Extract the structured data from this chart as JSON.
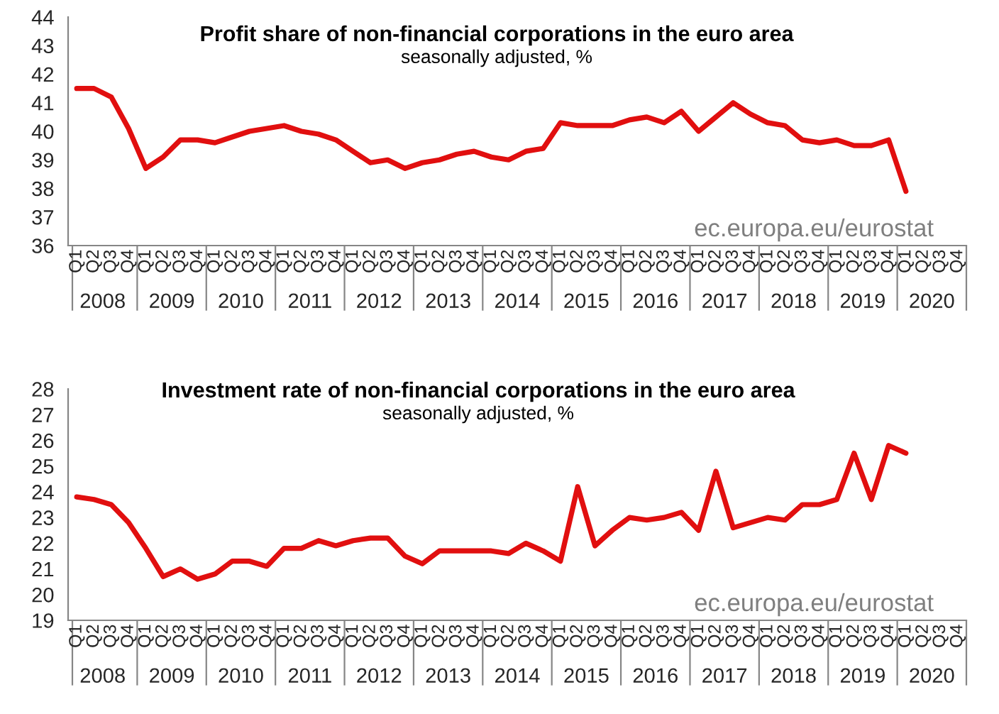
{
  "chart_data": [
    {
      "type": "line",
      "title": "Profit share of non-financial corporations in the euro area",
      "subtitle": "seasonally adjusted, %",
      "categories": [
        "Q1",
        "Q2",
        "Q3",
        "Q4",
        "Q1",
        "Q2",
        "Q3",
        "Q4",
        "Q1",
        "Q2",
        "Q3",
        "Q4",
        "Q1",
        "Q2",
        "Q3",
        "Q4",
        "Q1",
        "Q2",
        "Q3",
        "Q4",
        "Q1",
        "Q2",
        "Q3",
        "Q4",
        "Q1",
        "Q2",
        "Q3",
        "Q4",
        "Q1",
        "Q2",
        "Q3",
        "Q4",
        "Q1",
        "Q2",
        "Q3",
        "Q4",
        "Q1",
        "Q2",
        "Q3",
        "Q4",
        "Q1",
        "Q2",
        "Q3",
        "Q4",
        "Q1",
        "Q2",
        "Q3",
        "Q4",
        "Q1",
        "Q2",
        "Q3",
        "Q4"
      ],
      "series": [
        {
          "color": "#e10f0f",
          "values": [
            41.5,
            41.5,
            41.2,
            40.1,
            38.7,
            39.1,
            39.7,
            39.7,
            39.6,
            39.8,
            40.0,
            40.1,
            40.2,
            40.0,
            39.9,
            39.7,
            39.3,
            38.9,
            39.0,
            38.7,
            38.9,
            39.0,
            39.2,
            39.3,
            39.1,
            39.0,
            39.3,
            39.4,
            40.3,
            40.2,
            40.2,
            40.2,
            40.4,
            40.5,
            40.3,
            40.7,
            40.0,
            40.5,
            41.0,
            40.6,
            40.3,
            40.2,
            39.7,
            39.6,
            39.7,
            39.5,
            39.5,
            39.7,
            37.9,
            null,
            null,
            null
          ]
        }
      ],
      "ylim": [
        36,
        44
      ],
      "yticks": [
        36,
        37,
        38,
        39,
        40,
        41,
        42,
        43,
        44
      ],
      "grid": false,
      "marker": "none",
      "line_style": "solid",
      "annotations": [
        "2008",
        "2009",
        "2010",
        "2011",
        "2012",
        "2013",
        "2014",
        "2015",
        "2016",
        "2017",
        "2018",
        "2019",
        "2020",
        "ec.europa.eu/eurostat"
      ]
    },
    {
      "type": "line",
      "title": "Investment rate of non-financial corporations in the euro area",
      "subtitle": "seasonally adjusted, %",
      "categories": [
        "Q1",
        "Q2",
        "Q3",
        "Q4",
        "Q1",
        "Q2",
        "Q3",
        "Q4",
        "Q1",
        "Q2",
        "Q3",
        "Q4",
        "Q1",
        "Q2",
        "Q3",
        "Q4",
        "Q1",
        "Q2",
        "Q3",
        "Q4",
        "Q1",
        "Q2",
        "Q3",
        "Q4",
        "Q1",
        "Q2",
        "Q3",
        "Q4",
        "Q1",
        "Q2",
        "Q3",
        "Q4",
        "Q1",
        "Q2",
        "Q3",
        "Q4",
        "Q1",
        "Q2",
        "Q3",
        "Q4",
        "Q1",
        "Q2",
        "Q3",
        "Q4",
        "Q1",
        "Q2",
        "Q3",
        "Q4",
        "Q1",
        "Q2",
        "Q3",
        "Q4"
      ],
      "series": [
        {
          "color": "#e10f0f",
          "values": [
            23.8,
            23.7,
            23.5,
            22.8,
            21.8,
            20.7,
            21.0,
            20.6,
            20.8,
            21.3,
            21.3,
            21.1,
            21.8,
            21.8,
            22.1,
            21.9,
            22.1,
            22.2,
            22.2,
            21.5,
            21.2,
            21.7,
            21.7,
            21.7,
            21.7,
            21.6,
            22.0,
            21.7,
            21.3,
            24.2,
            21.9,
            22.5,
            23.0,
            22.9,
            23.0,
            23.2,
            22.5,
            24.8,
            22.6,
            22.8,
            23.0,
            22.9,
            23.5,
            23.5,
            23.7,
            25.5,
            23.7,
            25.8,
            25.5,
            null,
            null,
            null
          ]
        }
      ],
      "ylim": [
        19,
        28
      ],
      "yticks": [
        19,
        20,
        21,
        22,
        23,
        24,
        25,
        26,
        27,
        28
      ],
      "grid": false,
      "marker": "none",
      "line_style": "solid",
      "annotations": [
        "2008",
        "2009",
        "2010",
        "2011",
        "2012",
        "2013",
        "2014",
        "2015",
        "2016",
        "2017",
        "2018",
        "2019",
        "2020",
        "ec.europa.eu/eurostat"
      ]
    }
  ]
}
